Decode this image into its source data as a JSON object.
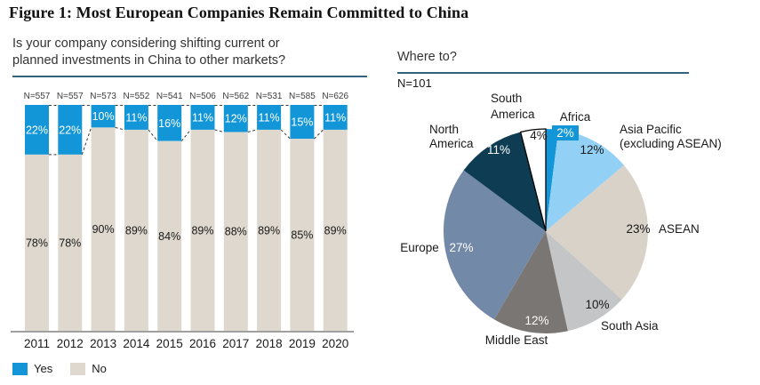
{
  "title": "Figure 1: Most European Companies Remain Committed to China",
  "bar_section": {
    "question_lines": [
      "Is your company considering shifting current or",
      "planned investments in China to other markets?"
    ],
    "legend": [
      {
        "label": "Yes",
        "color": "#1296d8"
      },
      {
        "label": "No",
        "color": "#ded8ce"
      }
    ]
  },
  "pie_section": {
    "title": "Where to?",
    "n_label": "N=101"
  },
  "chart_data": [
    {
      "type": "bar",
      "stacked": true,
      "title": "Is your company considering shifting current or planned investments in China to other markets?",
      "categories": [
        "2011",
        "2012",
        "2013",
        "2014",
        "2015",
        "2016",
        "2017",
        "2018",
        "2019",
        "2020"
      ],
      "n_labels": [
        "N=557",
        "N=557",
        "N=573",
        "N=552",
        "N=541",
        "N=506",
        "N=562",
        "N=531",
        "N=585",
        "N=626"
      ],
      "series": [
        {
          "name": "Yes",
          "color": "#1296d8",
          "values": [
            22,
            22,
            10,
            11,
            16,
            11,
            12,
            11,
            15,
            11
          ]
        },
        {
          "name": "No",
          "color": "#ded8ce",
          "values": [
            78,
            78,
            90,
            89,
            84,
            89,
            88,
            89,
            85,
            89
          ]
        }
      ],
      "value_suffix": "%",
      "ylim": [
        0,
        100
      ],
      "grid": false,
      "legend_position": "bottom-left"
    },
    {
      "type": "pie",
      "title": "Where to?",
      "n": "N=101",
      "slices": [
        {
          "label": "Africa",
          "value": 2,
          "color": "#1296d8"
        },
        {
          "label": "Asia Pacific (excluding ASEAN)",
          "label_lines": [
            "Asia Pacific",
            "(excluding ASEAN)"
          ],
          "value": 12,
          "color": "#93d0f5"
        },
        {
          "label": "ASEAN",
          "value": 23,
          "color": "#d9d2c8"
        },
        {
          "label": "South Asia",
          "value": 10,
          "color": "#c4c5c7"
        },
        {
          "label": "Middle East",
          "value": 12,
          "color": "#7a7673"
        },
        {
          "label": "Europe",
          "value": 27,
          "color": "#7389a8"
        },
        {
          "label": "North America",
          "label_lines": [
            "North",
            "America"
          ],
          "value": 11,
          "color": "#0e3d53"
        },
        {
          "label": "South America",
          "label_lines": [
            "South",
            "America"
          ],
          "value": 4,
          "color": "#ffffff",
          "stroke": "#000000"
        }
      ],
      "start_angle_deg": 0,
      "direction": "clockwise"
    }
  ],
  "accent_colors": {
    "heading_underline": "#31647f",
    "axis_line": "#a0a0a0"
  }
}
